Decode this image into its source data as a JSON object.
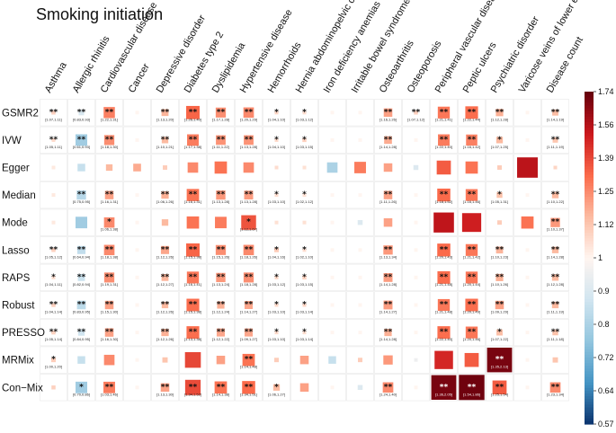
{
  "chart_data": {
    "type": "heatmap",
    "title": "Smoking initiation",
    "columns": [
      "Asthma",
      "Allergic rhinitis",
      "Cardiovascular disease",
      "Cancer",
      "Depressive disorder",
      "Diabetes type 2",
      "Dyslipidemia",
      "Hypertensive disease",
      "Hemorrhoids",
      "Hernia abdominopelvic cavity",
      "Iron deficiency anemias",
      "Irritable bowel syndrome",
      "Osteoarthritis",
      "Osteoporosis",
      "Peripheral vascular disease",
      "Peptic ulcers",
      "Psychiatric disorder",
      "Varicose veins of lower extremities",
      "Disease count"
    ],
    "rows": [
      "GSMR2",
      "IVW",
      "Egger",
      "Median",
      "Mode",
      "Lasso",
      "RAPS",
      "Robust",
      "PRESSO",
      "MRMix",
      "Con−Mix"
    ],
    "colorbar": {
      "ticks": [
        "0.57",
        "0.64",
        "0.72",
        "0.8",
        "0.9",
        "1",
        "1.12",
        "1.25",
        "1.39",
        "1.56",
        "1.74"
      ],
      "low_color": "#08306b",
      "mid_color": "#fff5f0",
      "high_color": "#67000d"
    },
    "values": [
      [
        1.09,
        0.89,
        1.27,
        1.0,
        1.16,
        1.33,
        1.24,
        1.25,
        1.08,
        1.06,
        1.0,
        1.0,
        1.2,
        1.09,
        1.29,
        1.31,
        1.17,
        1.0,
        1.14
      ],
      [
        1.07,
        0.78,
        1.24,
        1.0,
        1.15,
        1.28,
        1.23,
        1.23,
        1.07,
        1.09,
        1.0,
        1.0,
        1.18,
        1.0,
        1.28,
        1.27,
        1.15,
        1.0,
        1.12
      ],
      [
        1.03,
        0.85,
        1.15,
        1.18,
        1.1,
        1.25,
        1.3,
        1.25,
        1.06,
        1.05,
        0.8,
        1.28,
        1.2,
        0.9,
        1.35,
        1.3,
        1.1,
        1.55,
        1.08
      ],
      [
        1.03,
        0.82,
        1.2,
        1.0,
        1.17,
        1.3,
        1.22,
        1.21,
        1.06,
        1.05,
        1.0,
        1.0,
        1.2,
        1.0,
        1.32,
        1.29,
        1.13,
        1.0,
        1.15
      ],
      [
        1.03,
        0.78,
        1.25,
        1.0,
        1.15,
        1.3,
        1.28,
        1.37,
        1.05,
        1.05,
        1.0,
        0.9,
        1.2,
        1.0,
        1.54,
        1.5,
        1.1,
        1.3,
        1.22
      ],
      [
        1.09,
        0.84,
        1.25,
        1.0,
        1.19,
        1.33,
        1.24,
        1.25,
        1.1,
        1.06,
        1.0,
        1.0,
        1.22,
        1.0,
        1.32,
        1.29,
        1.16,
        1.0,
        1.15
      ],
      [
        1.06,
        0.86,
        1.24,
        1.0,
        1.16,
        1.29,
        1.22,
        1.24,
        1.08,
        1.09,
        1.0,
        1.0,
        1.21,
        1.0,
        1.31,
        1.29,
        1.17,
        1.0,
        1.15
      ],
      [
        1.09,
        0.83,
        1.2,
        1.0,
        1.15,
        1.31,
        1.17,
        1.19,
        1.07,
        1.08,
        1.0,
        1.0,
        1.21,
        1.0,
        1.29,
        1.31,
        1.2,
        1.0,
        1.15
      ],
      [
        1.09,
        0.87,
        1.2,
        1.0,
        1.17,
        1.31,
        1.19,
        1.19,
        1.07,
        1.06,
        1.0,
        1.0,
        1.17,
        1.0,
        1.31,
        1.29,
        1.14,
        1.0,
        1.13
      ],
      [
        1.1,
        0.85,
        1.25,
        1.0,
        1.12,
        1.4,
        1.2,
        1.3,
        1.1,
        1.2,
        0.85,
        1.1,
        1.22,
        0.95,
        1.48,
        1.35,
        1.7,
        1.0,
        1.12
      ],
      [
        1.09,
        0.78,
        1.28,
        1.0,
        1.2,
        1.39,
        1.3,
        1.32,
        1.15,
        1.2,
        1.0,
        0.9,
        1.25,
        1.0,
        1.7,
        1.72,
        1.35,
        1.0,
        1.25
      ]
    ],
    "stars": [
      [
        "**",
        "**",
        "**",
        "",
        "**",
        "**",
        "**",
        "**",
        "*",
        "*",
        "",
        "",
        "**",
        "**",
        "**",
        "**",
        "**",
        "",
        "**"
      ],
      [
        "**",
        "**",
        "**",
        "",
        "**",
        "**",
        "**",
        "**",
        "*",
        "*",
        "",
        "",
        "**",
        "",
        "**",
        "**",
        "*",
        "",
        "**"
      ],
      [
        "",
        "",
        "",
        "",
        "",
        "",
        "",
        "",
        "",
        "",
        "",
        "",
        "",
        "",
        "",
        "",
        "",
        "",
        ""
      ],
      [
        "",
        "**",
        "**",
        "",
        "**",
        "**",
        "**",
        "**",
        "*",
        "*",
        "",
        "",
        "**",
        "",
        "**",
        "**",
        "*",
        "",
        "**"
      ],
      [
        "",
        "",
        "*",
        "",
        "",
        "",
        "",
        "*",
        "",
        "",
        "",
        "",
        "",
        "",
        "",
        "",
        "",
        "",
        "**"
      ],
      [
        "**",
        "**",
        "**",
        "",
        "**",
        "**",
        "**",
        "**",
        "*",
        "*",
        "",
        "",
        "**",
        "",
        "**",
        "**",
        "**",
        "",
        "**"
      ],
      [
        "*",
        "**",
        "**",
        "",
        "**",
        "**",
        "**",
        "**",
        "*",
        "*",
        "",
        "",
        "**",
        "",
        "**",
        "**",
        "**",
        "",
        "**"
      ],
      [
        "**",
        "**",
        "**",
        "",
        "**",
        "**",
        "**",
        "**",
        "*",
        "*",
        "",
        "",
        "**",
        "",
        "**",
        "**",
        "**",
        "",
        "**"
      ],
      [
        "**",
        "**",
        "**",
        "",
        "**",
        "**",
        "**",
        "**",
        "*",
        "*",
        "",
        "",
        "**",
        "",
        "**",
        "**",
        "*",
        "",
        "**"
      ],
      [
        "*",
        "",
        "",
        "",
        "",
        "",
        "",
        "**",
        "",
        "",
        "",
        "",
        "",
        "",
        "",
        "",
        "**",
        "",
        ""
      ],
      [
        "",
        "*",
        "**",
        "",
        "**",
        "**",
        "**",
        "**",
        "*",
        "",
        "",
        "",
        "**",
        "",
        "**",
        "**",
        "**",
        "",
        "**"
      ]
    ],
    "ci": [
      [
        "[1.07,1.11]",
        "[0.83,0.93]",
        "[1.22,1.31]",
        "",
        "[1.13,1.20]",
        "[1.26,1.40]",
        "[1.17,1.28]",
        "[1.20,1.29]",
        "[1.04,1.10]",
        "[1.03,1.12]",
        "",
        "",
        "[1.16,1.26]",
        "[1.07,1.12]",
        "[1.21,1.41]",
        "[1.22,1.44]",
        "[1.12,1.28]",
        "",
        "[1.14,1.19]"
      ],
      [
        "[1.05,1.11]",
        "[0.61,0.93]",
        "[1.18,1.30]",
        "",
        "[1.10,1.21]",
        "[1.17,1.38]",
        "[1.11,1.22]",
        "[1.13,1.28]",
        "[1.04,1.10]",
        "[1.03,1.15]",
        "",
        "",
        "[1.14,1.28]",
        "",
        "[1.22,1.40]",
        "[1.16,1.42]",
        "[1.07,1.25]",
        "",
        "[1.11,1.19]"
      ],
      [
        "",
        "",
        "",
        "",
        "",
        "",
        "",
        "",
        "",
        "",
        "",
        "",
        "",
        "",
        "",
        "",
        "",
        "",
        ""
      ],
      [
        "",
        "[0.75,0.95]",
        "[1.16,1.31]",
        "",
        "[1.06,1.26]",
        "[1.16,1.31]",
        "[1.13,1.28]",
        "[1.13,1.28]",
        "[1.03,1.10]",
        "[1.02,1.12]",
        "",
        "",
        "[1.11,1.26]",
        "",
        "[1.18,1.52]",
        "[1.16,1.46]",
        "[1.05,1.31]",
        "",
        "[1.10,1.22]"
      ],
      [
        "",
        "",
        "[1.06,1.38]",
        "",
        "",
        "",
        "",
        "[1.12,1.67]",
        "",
        "",
        "",
        "",
        "",
        "",
        "",
        "",
        "",
        "",
        "[1.10,1.37]"
      ],
      [
        "[1.05,1.12]",
        "[0.64,0.94]",
        "[1.18,1.38]",
        "",
        "[1.12,1.26]",
        "[1.15,1.38]",
        "[1.15,1.26]",
        "[1.18,1.26]",
        "[1.04,1.16]",
        "[1.02,1.10]",
        "",
        "",
        "[1.13,1.34]",
        "",
        "[1.20,1.43]",
        "[1.21,1.42]",
        "[1.10,1.23]",
        "",
        "[1.14,1.28]"
      ],
      [
        "[1.04,1.11]",
        "[0.82,0.94]",
        "[1.19,1.31]",
        "",
        "[1.12,1.27]",
        "[1.16,1.41]",
        "[1.13,1.24]",
        "[1.18,1.28]",
        "[1.03,1.12]",
        "[1.03,1.15]",
        "",
        "",
        "[1.14,1.28]",
        "",
        "[1.21,1.48]",
        "[1.20,1.44]",
        "[1.10,1.26]",
        "",
        "[1.12,1.28]"
      ],
      [
        "[1.04,1.14]",
        "[0.83,0.95]",
        "[1.15,1.30]",
        "",
        "[1.12,1.26]",
        "[1.15,1.38]",
        "[1.12,1.24]",
        "[1.14,1.27]",
        "[1.03,1.10]",
        "[1.03,1.14]",
        "",
        "",
        "[1.14,1.27]",
        "",
        "[1.21,1.48]",
        "[1.20,1.49]",
        "[1.09,1.29]",
        "",
        "[1.11,1.19]"
      ],
      [
        "[1.05,1.14]",
        "[0.84,0.95]",
        "[1.16,1.30]",
        "",
        "[1.12,1.26]",
        "[1.13,1.38]",
        "[1.12,1.22]",
        "[1.09,1.27]",
        "[1.03,1.10]",
        "[1.03,1.14]",
        "",
        "",
        "[1.14,1.28]",
        "",
        "[1.22,1.40]",
        "[1.20,1.46]",
        "[1.07,1.22]",
        "",
        "[1.11,1.18]"
      ],
      [
        "[1.00,1.20]",
        "",
        "",
        "",
        "",
        "",
        "",
        "[1.14,1.48]",
        "",
        "",
        "",
        "",
        "",
        "",
        "",
        "",
        "[1.35,2.13]",
        "",
        ""
      ],
      [
        "",
        "[0.70,0.86]",
        "[1.03,1.46]",
        "",
        "[1.13,1.30]",
        "[1.34,1.52]",
        "[1.14,1.38]",
        "[1.34,1.51]",
        "[1.06,1.27]",
        "",
        "",
        "",
        "[1.24,1.40]",
        "",
        "[1.36,2.05]",
        "[1.54,1.86]",
        "[1.25,1.54]",
        "",
        "[1.23,1.34]"
      ]
    ]
  }
}
